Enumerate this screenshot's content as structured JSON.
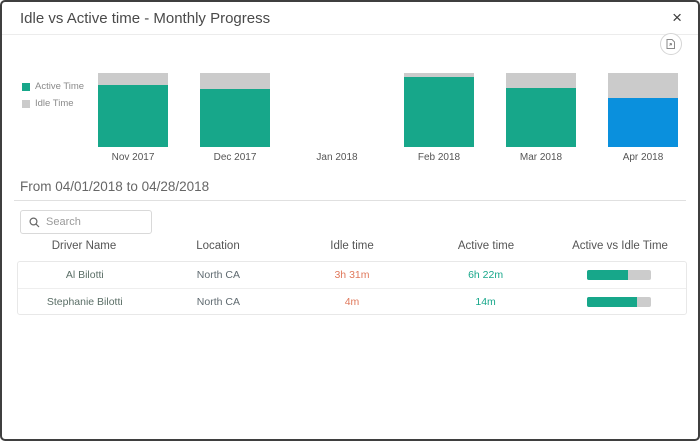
{
  "colors": {
    "teal": "#17A78A",
    "idle_gray": "#CBCBCB",
    "highlight_blue": "#0A90DD",
    "orange": "#E0795C"
  },
  "header": {
    "title": "Idle vs Active time - Monthly Progress",
    "close_label": "×"
  },
  "chart_data": {
    "type": "bar",
    "stacked_percent": true,
    "title": "Idle vs Active time - Monthly Progress",
    "categories": [
      "Nov 2017",
      "Dec 2017",
      "Jan 2018",
      "Feb 2018",
      "Mar 2018",
      "Apr 2018"
    ],
    "series": [
      {
        "name": "Active Time",
        "color": "#17A78A",
        "values": [
          84,
          79,
          0,
          95,
          80,
          66
        ]
      },
      {
        "name": "Idle Time",
        "color": "#CBCBCB",
        "values": [
          16,
          21,
          0,
          5,
          20,
          34
        ]
      }
    ],
    "highlighted_category": "Apr 2018",
    "highlight_color": "#0A90DD",
    "legend_position": "left",
    "grid": false,
    "ylim": [
      0,
      100
    ]
  },
  "date_range": "From 04/01/2018 to 04/28/2018",
  "search": {
    "placeholder": "Search"
  },
  "table": {
    "columns": [
      "Driver Name",
      "Location",
      "Idle time",
      "Active time",
      "Active vs Idle Time"
    ],
    "rows": [
      {
        "driver": "Al Bilotti",
        "location": "North CA",
        "idle": "3h 31m",
        "active": "6h 22m",
        "active_pct": 64
      },
      {
        "driver": "Stephanie Bilotti",
        "location": "North CA",
        "idle": "4m",
        "active": "14m",
        "active_pct": 78
      }
    ]
  }
}
